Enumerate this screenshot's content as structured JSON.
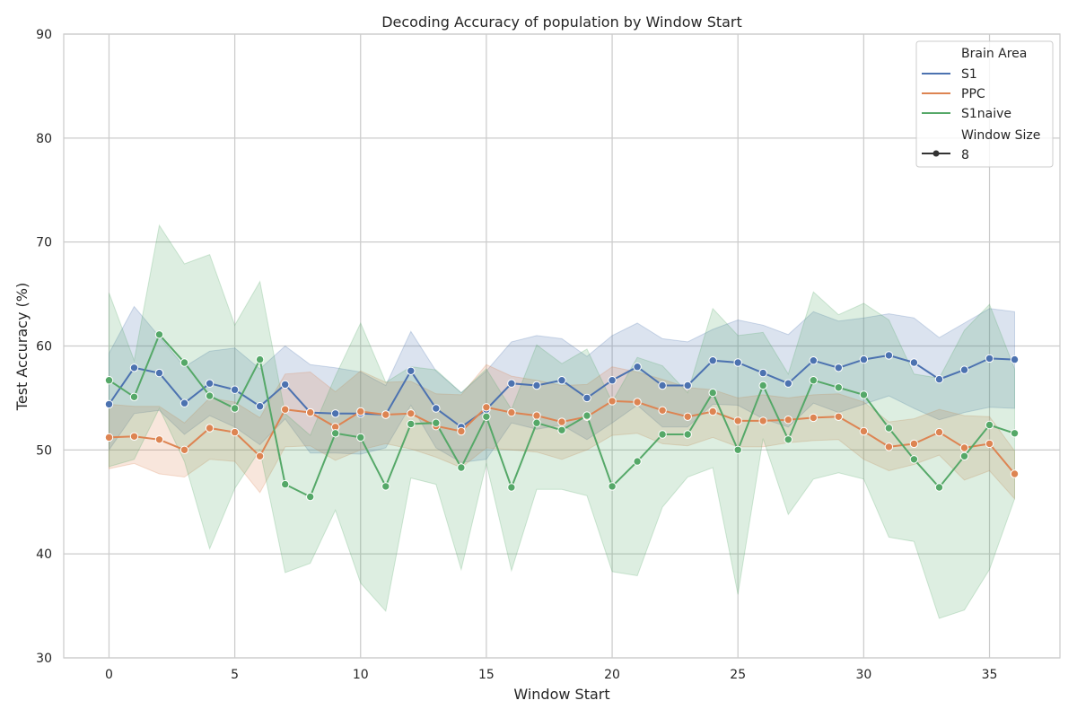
{
  "chart_data": {
    "type": "line",
    "title": "Decoding Accuracy of population by Window Start",
    "xlabel": "Window Start",
    "ylabel": "Test Accuracy (%)",
    "xlim": [
      -1.8,
      37.8
    ],
    "ylim": [
      30,
      90
    ],
    "xticks": [
      0,
      5,
      10,
      15,
      20,
      25,
      30,
      35
    ],
    "yticks": [
      30,
      40,
      50,
      60,
      70,
      80,
      90
    ],
    "grid": true,
    "legend_position": "top-right",
    "legend": {
      "hue_title": "Brain Area",
      "style_title": "Window Size",
      "style_entry": "8"
    },
    "x": [
      0,
      1,
      2,
      3,
      4,
      5,
      6,
      7,
      8,
      9,
      10,
      11,
      12,
      13,
      14,
      15,
      16,
      17,
      18,
      19,
      20,
      21,
      22,
      23,
      24,
      25,
      26,
      27,
      28,
      29,
      30,
      31,
      32,
      33,
      34,
      35,
      36
    ],
    "series": [
      {
        "name": "S1",
        "color": "#4c72b0",
        "values": [
          54.4,
          57.9,
          57.4,
          54.5,
          56.4,
          55.8,
          54.2,
          56.3,
          53.6,
          53.5,
          53.5,
          53.4,
          57.6,
          54.0,
          52.2,
          53.9,
          56.4,
          56.2,
          56.7,
          55.0,
          56.7,
          58.0,
          56.2,
          56.2,
          58.6,
          58.4,
          57.4,
          56.4,
          58.6,
          57.9,
          58.7,
          59.1,
          58.4,
          56.8,
          57.7,
          58.8,
          58.7
        ],
        "ci_low": [
          50.0,
          53.5,
          53.8,
          51.5,
          53.3,
          52.2,
          50.5,
          53.0,
          49.7,
          49.7,
          49.6,
          50.2,
          54.3,
          50.2,
          48.8,
          49.1,
          52.6,
          52.0,
          52.4,
          51.0,
          52.6,
          54.3,
          52.2,
          52.2,
          54.4,
          54.3,
          53.0,
          52.2,
          54.5,
          53.6,
          54.4,
          55.2,
          54.0,
          52.9,
          53.6,
          54.1,
          54.0
        ],
        "ci_high": [
          59.3,
          63.8,
          60.9,
          58.0,
          59.5,
          59.8,
          57.8,
          60.0,
          58.2,
          57.9,
          57.5,
          56.2,
          61.4,
          57.6,
          55.5,
          57.6,
          60.4,
          61.0,
          60.7,
          59.0,
          61.0,
          62.2,
          60.7,
          60.4,
          61.6,
          62.5,
          62.0,
          61.1,
          63.3,
          62.4,
          62.7,
          63.1,
          62.7,
          60.8,
          62.2,
          63.6,
          63.3
        ]
      },
      {
        "name": "PPC",
        "color": "#dd8452",
        "values": [
          51.2,
          51.3,
          51.0,
          50.0,
          52.1,
          51.7,
          49.4,
          53.9,
          53.6,
          52.2,
          53.7,
          53.4,
          53.5,
          52.3,
          51.8,
          54.1,
          53.6,
          53.3,
          52.7,
          53.2,
          54.7,
          54.6,
          53.8,
          53.2,
          53.7,
          52.8,
          52.8,
          52.9,
          53.1,
          53.2,
          51.8,
          50.3,
          50.6,
          51.7,
          50.2,
          50.6,
          47.7
        ],
        "ci_low": [
          48.2,
          48.7,
          47.7,
          47.4,
          49.1,
          48.9,
          45.9,
          50.3,
          50.4,
          49.0,
          50.0,
          50.6,
          50.1,
          49.3,
          48.3,
          50.2,
          50.0,
          49.8,
          49.1,
          50.0,
          51.4,
          51.6,
          50.6,
          50.4,
          51.2,
          50.3,
          50.3,
          50.7,
          50.9,
          51.0,
          49.1,
          48.0,
          48.6,
          49.5,
          47.1,
          48.0,
          45.3
        ],
        "ci_high": [
          54.4,
          54.2,
          54.2,
          52.6,
          55.0,
          54.6,
          53.1,
          57.3,
          57.5,
          55.6,
          57.6,
          56.5,
          56.6,
          55.4,
          55.3,
          58.2,
          57.1,
          56.7,
          56.2,
          56.3,
          58.0,
          57.5,
          56.8,
          56.0,
          55.8,
          55.0,
          55.3,
          55.0,
          55.3,
          55.4,
          54.6,
          52.7,
          53.0,
          53.9,
          53.3,
          53.2,
          49.9
        ]
      },
      {
        "name": "S1naive",
        "color": "#55a868",
        "values": [
          56.7,
          55.1,
          61.1,
          58.4,
          55.2,
          54.0,
          58.7,
          46.7,
          45.5,
          51.6,
          51.2,
          46.5,
          52.5,
          52.6,
          48.3,
          53.2,
          46.4,
          52.6,
          51.9,
          53.3,
          46.5,
          48.9,
          51.5,
          51.5,
          55.5,
          50.0,
          56.2,
          51.0,
          56.7,
          56.0,
          55.3,
          52.1,
          49.1,
          46.4,
          49.4,
          52.4,
          51.6
        ],
        "ci_low": [
          48.4,
          49.1,
          54.0,
          48.9,
          40.5,
          46.3,
          50.0,
          38.2,
          39.1,
          44.2,
          37.2,
          34.5,
          47.3,
          46.7,
          38.5,
          48.7,
          38.4,
          46.2,
          46.2,
          45.6,
          38.3,
          37.9,
          44.5,
          47.4,
          48.3,
          36.1,
          51.1,
          43.8,
          47.2,
          47.8,
          47.2,
          41.6,
          41.2,
          33.8,
          34.6,
          38.5,
          45.3
        ],
        "ci_high": [
          65.1,
          58.6,
          71.6,
          67.9,
          68.8,
          62.0,
          66.2,
          53.5,
          51.4,
          57.1,
          62.2,
          56.5,
          58.0,
          57.7,
          55.5,
          57.8,
          53.9,
          60.1,
          58.3,
          59.7,
          54.6,
          58.9,
          58.1,
          55.5,
          63.6,
          61.0,
          61.3,
          57.3,
          65.2,
          63.0,
          64.1,
          62.5,
          57.3,
          56.9,
          61.5,
          64.0,
          57.8
        ]
      }
    ]
  }
}
